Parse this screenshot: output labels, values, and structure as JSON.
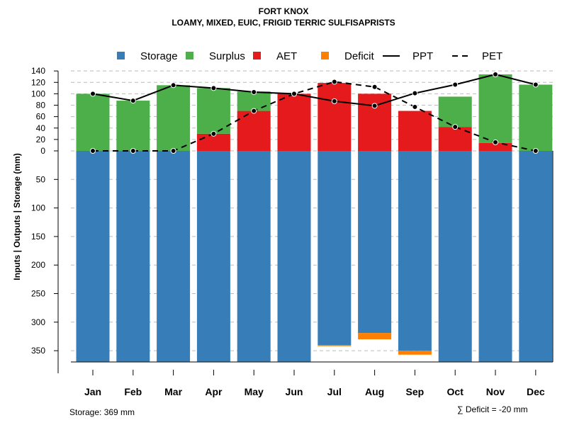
{
  "chart_data": {
    "type": "bar",
    "title": "FORT KNOX",
    "subtitle": "LOAMY, MIXED, EUIC, FRIGID TERRIC SULFISAPRISTS",
    "ylabel": "Inputs | Outputs | Storage    (mm)",
    "categories": [
      "Jan",
      "Feb",
      "Mar",
      "Apr",
      "May",
      "Jun",
      "Jul",
      "Aug",
      "Sep",
      "Oct",
      "Nov",
      "Dec"
    ],
    "yticks_up": [
      0,
      20,
      40,
      60,
      80,
      100,
      120,
      140
    ],
    "yticks_down": [
      50,
      100,
      150,
      200,
      250,
      300,
      350
    ],
    "ylim": [
      -369,
      140
    ],
    "legend": [
      {
        "name": "Storage",
        "color": "#377EB8",
        "kind": "box"
      },
      {
        "name": "Surplus",
        "color": "#4DAF4A",
        "kind": "box"
      },
      {
        "name": "AET",
        "color": "#E41A1C",
        "kind": "box"
      },
      {
        "name": "Deficit",
        "color": "#FF7F00",
        "kind": "box"
      },
      {
        "name": "PPT",
        "color": "#000000",
        "kind": "solid"
      },
      {
        "name": "PET",
        "color": "#000000",
        "kind": "dashed"
      }
    ],
    "legend_position": "top",
    "series": {
      "Storage": [
        369,
        369,
        369,
        369,
        369,
        369,
        340,
        319,
        350,
        369,
        369,
        369
      ],
      "Surplus": [
        100,
        88,
        115,
        80,
        34,
        0,
        0,
        0,
        0,
        53,
        120,
        116
      ],
      "AET": [
        0,
        0,
        0,
        30,
        70,
        100,
        119,
        100,
        70,
        42,
        14,
        0
      ],
      "Deficit": [
        0,
        0,
        0,
        0,
        0,
        0,
        2,
        11,
        7,
        0,
        0,
        0
      ],
      "PPT": [
        100,
        88,
        115,
        110,
        103,
        100,
        87,
        79,
        101,
        116,
        134,
        116
      ],
      "PET": [
        0,
        0,
        0,
        30,
        70,
        100,
        121,
        112,
        77,
        42,
        15,
        0
      ]
    },
    "annotations": {
      "storage": "Storage: 369 mm",
      "deficit": "∑ Deficit = -20 mm"
    }
  }
}
